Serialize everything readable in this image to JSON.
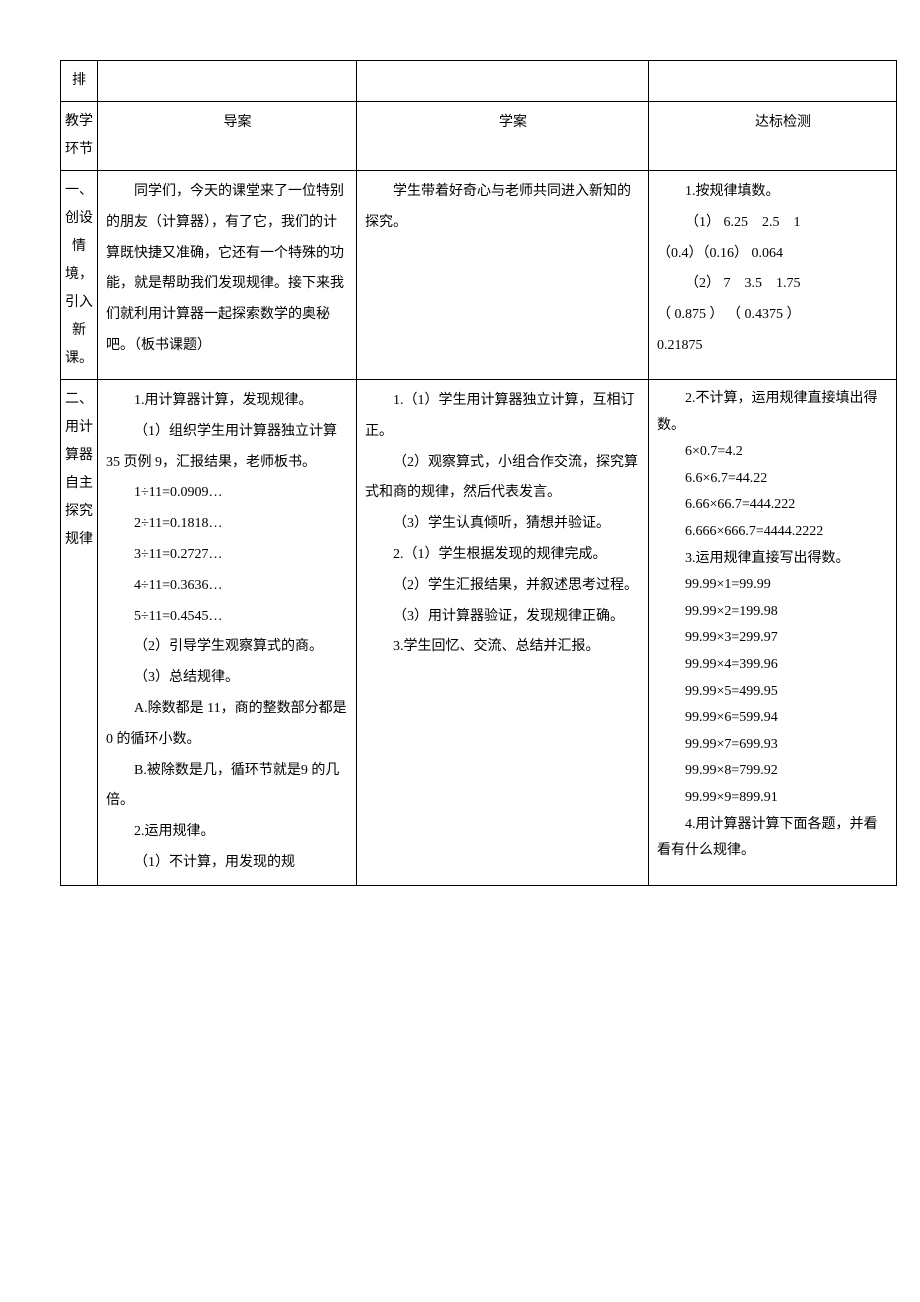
{
  "header": {
    "row0_label": "排",
    "labels_col": "教学环节",
    "col1": "导案",
    "col2": "学案",
    "col3": "达标检测"
  },
  "row1": {
    "label": "一、创设情境，引入新课。",
    "daoAn": "同学们，今天的课堂来了一位特别的朋友（计算器），有了它，我们的计算既快捷又准确，它还有一个特殊的功能，就是帮助我们发现规律。接下来我们就利用计算器一起探索数学的奥秘吧。（板书课题）",
    "xueAn": "学生带着好奇心与老师共同进入新知的探究。",
    "check": {
      "title": "1.按规律填数。",
      "line1_a": "（1） 6.25",
      "line1_b": "2.5",
      "line1_c": "1",
      "line2": "（0.4）（0.16）  0.064",
      "line3_a": "（2） 7",
      "line3_b": "3.5",
      "line3_c": "1.75",
      "line4": "（ 0.875 ） （ 0.4375 ）",
      "line5": "0.21875"
    }
  },
  "row2": {
    "label": "二、用计算器自主探究规律",
    "daoAn": {
      "p1": "1.用计算器计算，发现规律。",
      "p2": "（1）组织学生用计算器独立计算 35 页例 9，汇报结果，老师板书。",
      "eq1": "1÷11=0.0909…",
      "eq2": "2÷11=0.1818…",
      "eq3": "3÷11=0.2727…",
      "eq4": "4÷11=0.3636…",
      "eq5": "5÷11=0.4545…",
      "p3": "（2）引导学生观察算式的商。",
      "p4": "（3）总结规律。",
      "p5": "A.除数都是 11，商的整数部分都是 0 的循环小数。",
      "p6": "B.被除数是几，循环节就是9 的几倍。",
      "p7": "2.运用规律。",
      "p8": "（1）不计算，用发现的规"
    },
    "xueAn": {
      "p1": "1.（1）学生用计算器独立计算，互相订正。",
      "p2": "（2）观察算式，小组合作交流，探究算式和商的规律，然后代表发言。",
      "p3": "（3）学生认真倾听，猜想并验证。",
      "p4": "2.（1）学生根据发现的规律完成。",
      "p5": "（2）学生汇报结果，并叙述思考过程。",
      "p6": "（3）用计算器验证，发现规律正确。",
      "p7": "3.学生回忆、交流、总结并汇报。"
    },
    "check": {
      "t1": "2.不计算，运用规律直接填出得数。",
      "e1": "6×0.7=4.2",
      "e2": "6.6×6.7=44.22",
      "e3": "6.66×66.7=444.222",
      "e4": "6.666×666.7=4444.2222",
      "t2": "3.运用规律直接写出得数。",
      "f1": "99.99×1=99.99",
      "f2": "99.99×2=199.98",
      "f3": "99.99×3=299.97",
      "f4": "99.99×4=399.96",
      "f5": "99.99×5=499.95",
      "f6": "99.99×6=599.94",
      "f7": "99.99×7=699.93",
      "f8": "99.99×8=799.92",
      "f9": "99.99×9=899.91",
      "t3": "4.用计算器计算下面各题，并看看有什么规律。"
    }
  }
}
